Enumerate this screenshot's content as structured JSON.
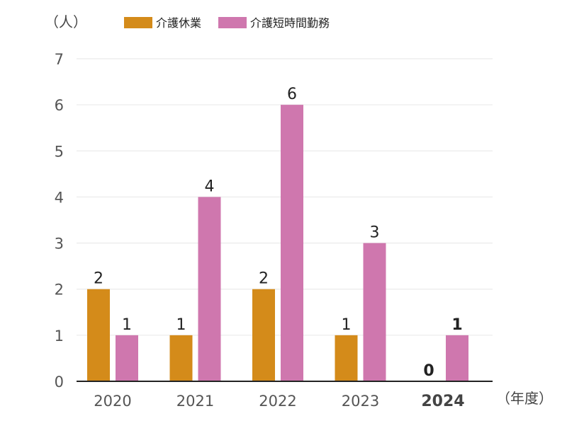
{
  "chart_data": {
    "type": "bar",
    "title": "",
    "ylabel": "（人）",
    "xlabel": "（年度）",
    "ylim": [
      0,
      7
    ],
    "yticks": [
      0,
      1,
      2,
      3,
      4,
      5,
      6,
      7
    ],
    "grid": true,
    "legend_position": "top",
    "categories": [
      "2020",
      "2021",
      "2022",
      "2023",
      "2024"
    ],
    "highlight_category": "2024",
    "series": [
      {
        "name": "介護休業",
        "color": "#d48b1a",
        "values": [
          2,
          1,
          2,
          1,
          0
        ]
      },
      {
        "name": "介護短時間勤務",
        "color": "#cf77ae",
        "values": [
          1,
          4,
          6,
          3,
          1
        ]
      }
    ]
  }
}
